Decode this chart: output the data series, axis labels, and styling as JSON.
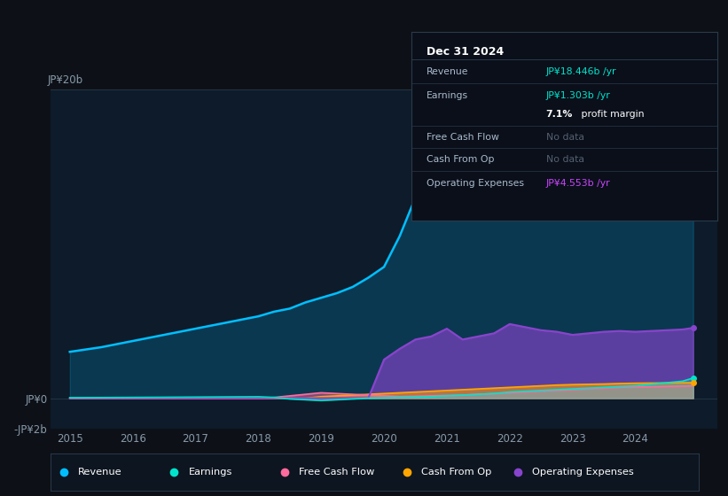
{
  "bg_color": "#0d1117",
  "plot_bg_color": "#0d1b2a",
  "years": [
    2015.0,
    2015.5,
    2016.0,
    2016.5,
    2017.0,
    2017.5,
    2018.0,
    2018.25,
    2018.5,
    2018.75,
    2019.0,
    2019.25,
    2019.5,
    2019.75,
    2020.0,
    2020.25,
    2020.5,
    2020.75,
    2021.0,
    2021.25,
    2021.5,
    2021.75,
    2022.0,
    2022.25,
    2022.5,
    2022.75,
    2023.0,
    2023.25,
    2023.5,
    2023.75,
    2024.0,
    2024.25,
    2024.5,
    2024.75,
    2024.92
  ],
  "revenue": [
    3.0,
    3.3,
    3.7,
    4.1,
    4.5,
    4.9,
    5.3,
    5.6,
    5.8,
    6.2,
    6.5,
    6.8,
    7.2,
    7.8,
    8.5,
    10.5,
    13.0,
    15.5,
    17.5,
    19.0,
    19.2,
    19.5,
    19.8,
    19.3,
    18.8,
    18.5,
    18.6,
    18.7,
    18.8,
    18.9,
    18.5,
    18.4,
    18.3,
    18.3,
    18.446
  ],
  "earnings": [
    0.03,
    0.04,
    0.05,
    0.06,
    0.07,
    0.08,
    0.09,
    0.05,
    -0.05,
    -0.1,
    -0.15,
    -0.1,
    -0.05,
    0.0,
    0.02,
    0.05,
    0.07,
    0.1,
    0.15,
    0.2,
    0.25,
    0.3,
    0.4,
    0.45,
    0.5,
    0.55,
    0.6,
    0.65,
    0.7,
    0.75,
    0.8,
    0.9,
    1.0,
    1.1,
    1.303
  ],
  "free_cash": [
    0.0,
    0.0,
    0.0,
    0.0,
    0.0,
    0.0,
    0.0,
    0.05,
    0.15,
    0.25,
    0.35,
    0.3,
    0.25,
    0.2,
    0.15,
    0.1,
    0.12,
    0.15,
    0.18,
    0.2,
    0.25,
    0.3,
    0.35,
    0.4,
    0.45,
    0.5,
    0.55,
    0.6,
    0.65,
    0.7,
    0.72,
    0.74,
    0.76,
    0.78,
    0.8
  ],
  "cash_from_op": [
    0.0,
    0.0,
    0.0,
    0.0,
    0.0,
    0.0,
    0.0,
    0.0,
    0.0,
    0.0,
    0.1,
    0.15,
    0.2,
    0.25,
    0.3,
    0.35,
    0.4,
    0.45,
    0.5,
    0.55,
    0.6,
    0.65,
    0.7,
    0.75,
    0.8,
    0.85,
    0.88,
    0.9,
    0.92,
    0.95,
    0.97,
    0.98,
    0.99,
    1.0,
    1.0
  ],
  "op_expenses": [
    0.0,
    0.0,
    0.0,
    0.0,
    0.0,
    0.0,
    0.0,
    0.0,
    0.0,
    0.0,
    0.0,
    0.0,
    0.0,
    0.0,
    2.5,
    3.2,
    3.8,
    4.0,
    4.5,
    3.8,
    4.0,
    4.2,
    4.8,
    4.6,
    4.4,
    4.3,
    4.1,
    4.2,
    4.3,
    4.35,
    4.3,
    4.35,
    4.4,
    4.45,
    4.553
  ],
  "ylim": [
    -2.0,
    20.0
  ],
  "xlim": [
    2014.7,
    2025.3
  ],
  "yticks": [
    -2,
    0,
    20
  ],
  "ytick_labels": [
    "-JP¥2b",
    "JP¥0",
    "JP¥20b"
  ],
  "xticks": [
    2015,
    2016,
    2017,
    2018,
    2019,
    2020,
    2021,
    2022,
    2023,
    2024
  ],
  "revenue_color": "#00bfff",
  "earnings_color": "#00e5cc",
  "free_cash_color": "#ff6b9d",
  "cash_from_op_color": "#ffa500",
  "op_expenses_color": "#8844cc",
  "grid_color": "#253545",
  "tooltip_bg": "#0a0f1a",
  "tooltip_border": "#2a3a4a",
  "legend_bg": "#0d1520",
  "legend_border": "#2a3a4a",
  "title_date": "Dec 31 2024",
  "legend_items": [
    {
      "label": "Revenue",
      "color": "#00bfff"
    },
    {
      "label": "Earnings",
      "color": "#00e5cc"
    },
    {
      "label": "Free Cash Flow",
      "color": "#ff6b9d"
    },
    {
      "label": "Cash From Op",
      "color": "#ffa500"
    },
    {
      "label": "Operating Expenses",
      "color": "#8844cc"
    }
  ]
}
